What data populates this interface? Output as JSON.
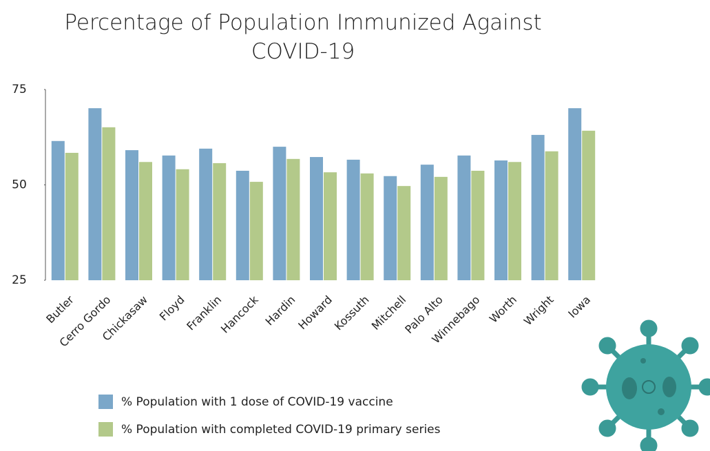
{
  "chart_data": {
    "type": "bar",
    "title": "Percentage of Population Immunized Against COVID-19",
    "categories": [
      "Butler",
      "Cerro Gordo",
      "Chickasaw",
      "Floyd",
      "Franklin",
      "Hancock",
      "Hardin",
      "Howard",
      "Kossuth",
      "Mitchell",
      "Palo Alto",
      "Winnebago",
      "Worth",
      "Wright",
      "Iowa"
    ],
    "series": [
      {
        "name": "% Population with 1 dose of COVID-19 vaccine",
        "color": "#7ba7c9",
        "values": [
          61.5,
          70.1,
          59.1,
          57.7,
          59.5,
          53.7,
          60.0,
          57.3,
          56.6,
          52.3,
          55.3,
          57.7,
          56.4,
          63.1,
          70.1
        ]
      },
      {
        "name": "% Population with completed COVID-19 primary series",
        "color": "#b3c98a",
        "values": [
          58.4,
          65.1,
          56.0,
          54.1,
          55.7,
          50.8,
          56.8,
          53.3,
          53.0,
          49.7,
          52.1,
          53.7,
          56.0,
          58.8,
          64.2
        ]
      }
    ],
    "ylim": [
      25,
      75
    ],
    "yticks": [
      25,
      50,
      75
    ],
    "grid": false
  }
}
